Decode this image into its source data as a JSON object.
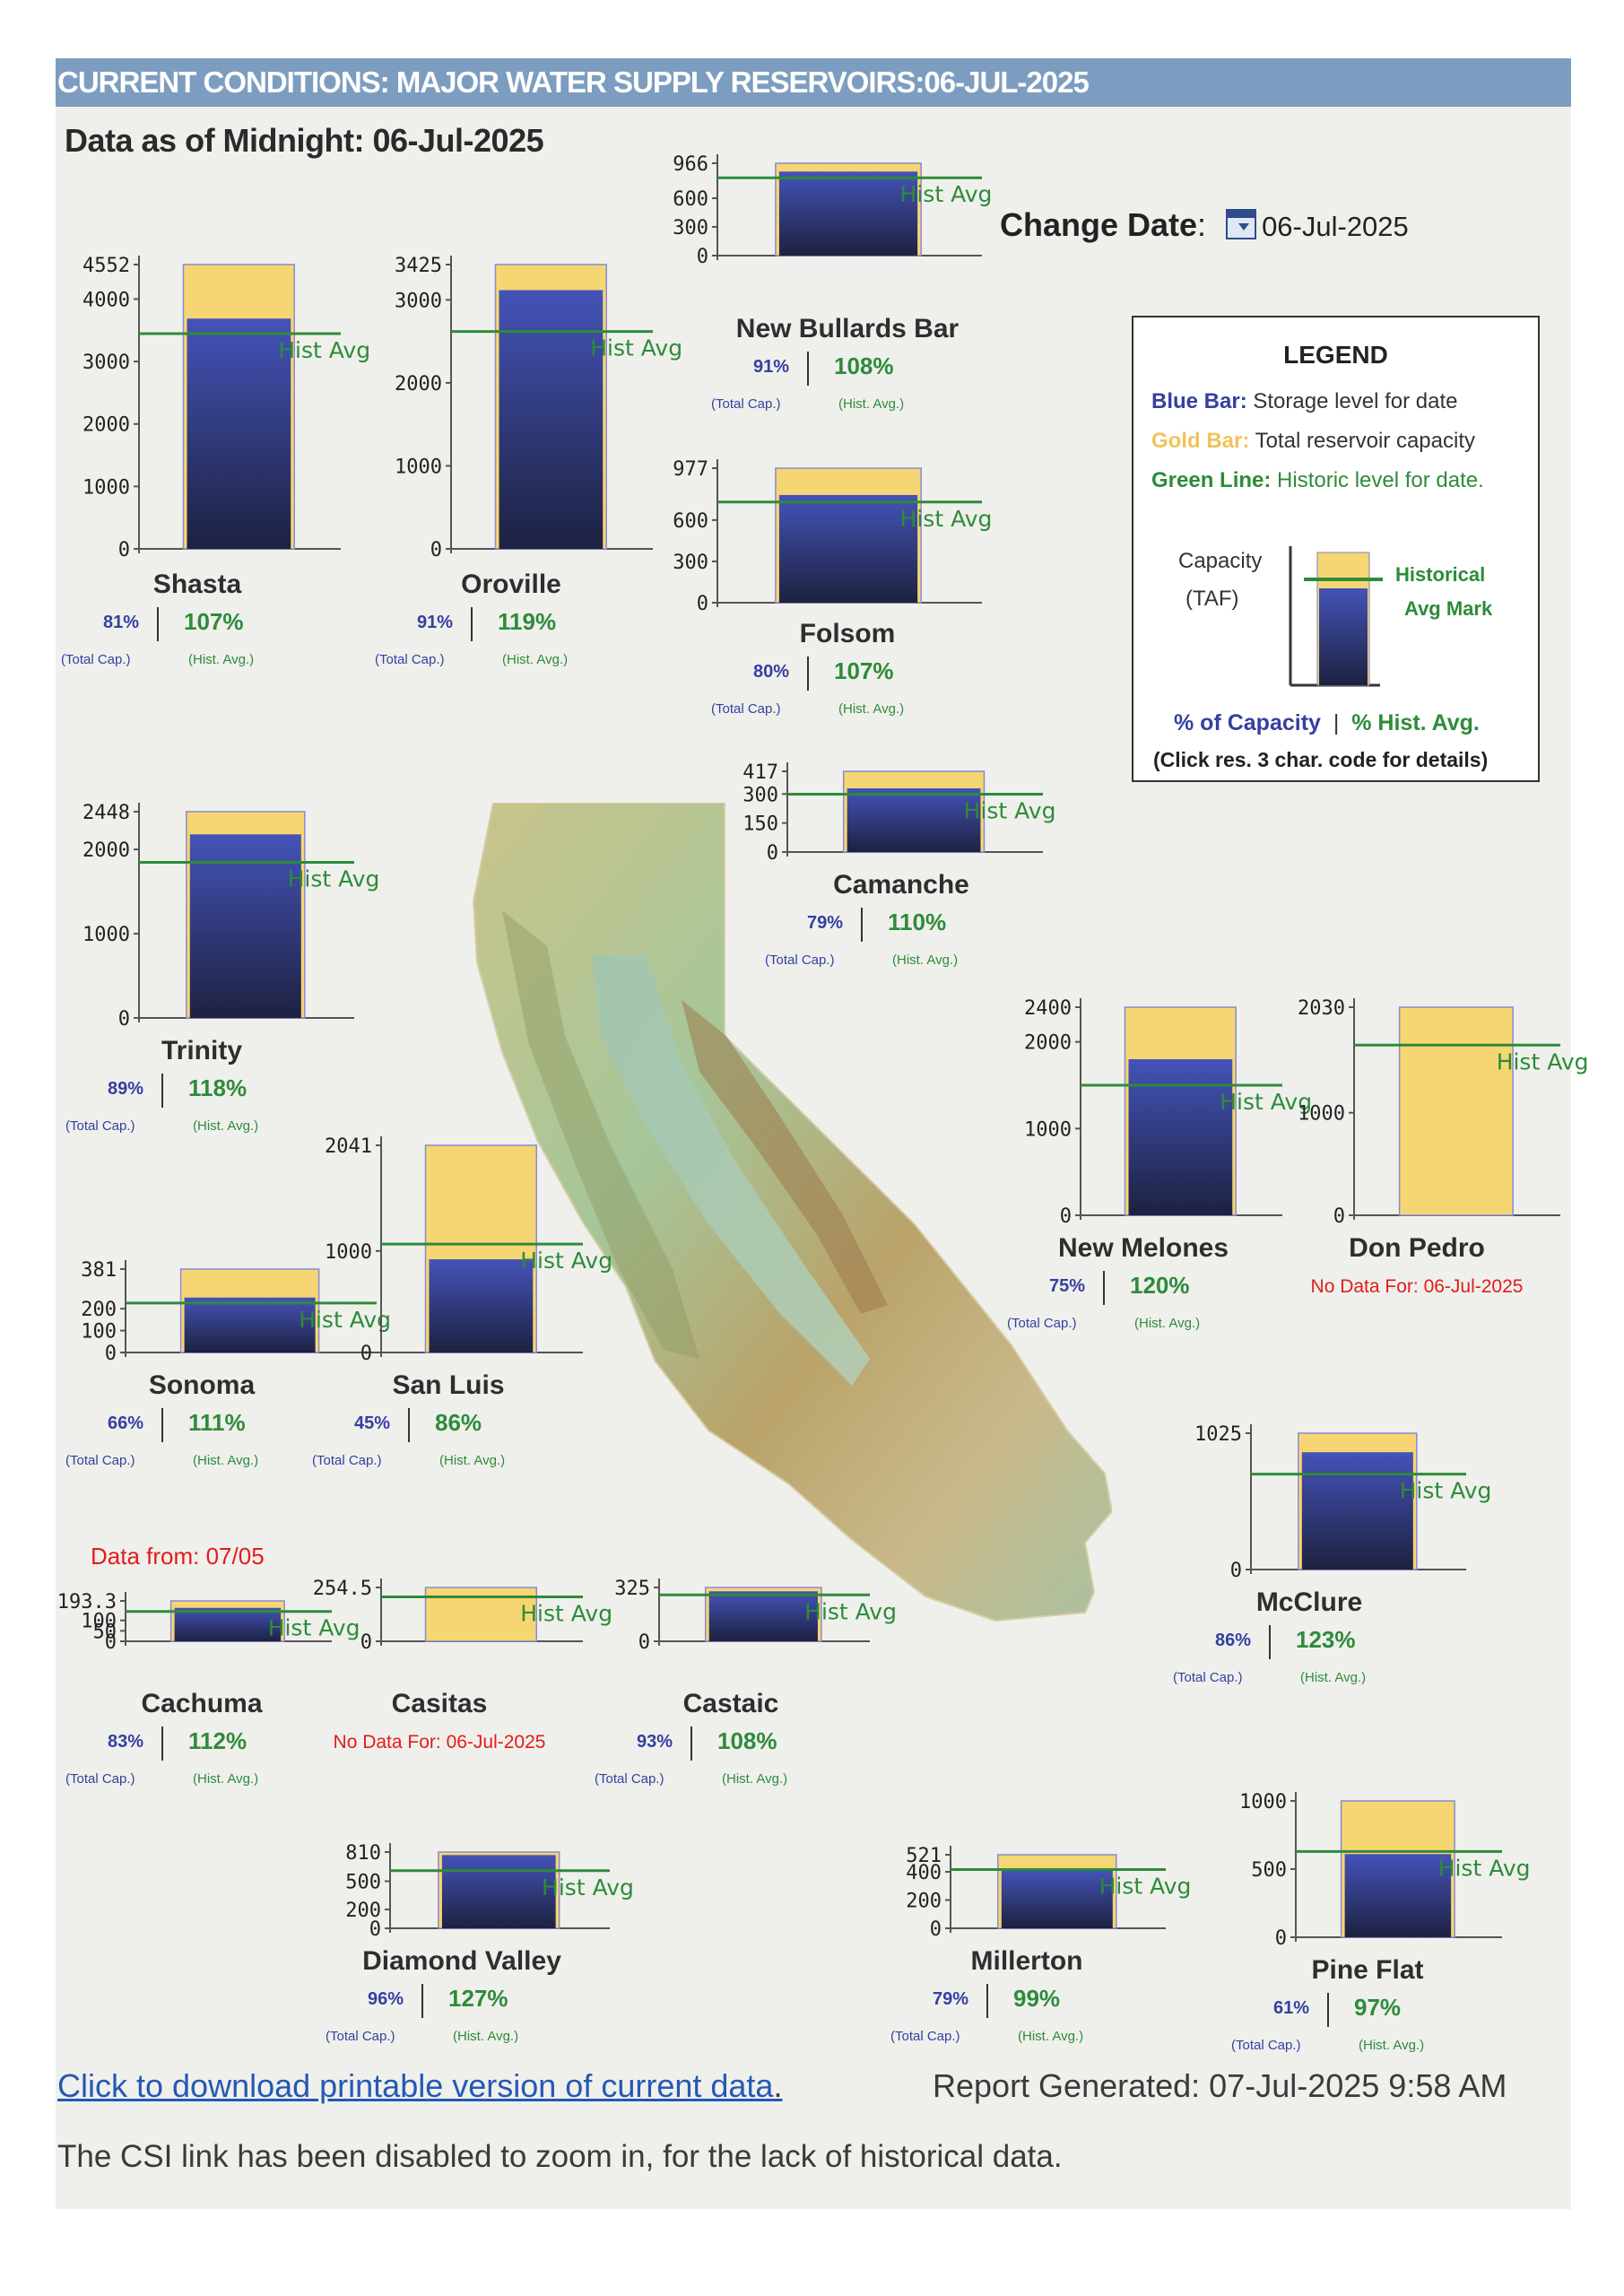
{
  "header": {
    "title": "CURRENT CONDITIONS: MAJOR WATER SUPPLY RESERVOIRS:06-JUL-2025",
    "as_of": "Data as of Midnight: 06-Jul-2025"
  },
  "change_date": {
    "label": "Change Date",
    "colon": ":",
    "value": "06-Jul-2025"
  },
  "legend": {
    "title": "LEGEND",
    "blue_label": "Blue Bar:",
    "blue_text": "Storage level for date",
    "gold_label": "Gold Bar:",
    "gold_text": "Total reservoir capacity",
    "green_label": "Green Line:",
    "green_text": "Historic level for date.",
    "capacity_label": "Capacity",
    "capacity_unit": "(TAF)",
    "hist_mark_line1": "Historical",
    "hist_mark_line2": "Avg Mark",
    "pct_capacity": "% of Capacity",
    "sep": "|",
    "pct_hist": "% Hist. Avg.",
    "click_note": "(Click res. 3 char. code for details)"
  },
  "labels": {
    "hist_avg": "Hist Avg",
    "total_cap": "(Total Cap.)",
    "hist_avg_small": "(Hist. Avg.)"
  },
  "colors": {
    "storage_top": "#4453b8",
    "storage_bottom": "#1d2140",
    "capacity": "#f6d672",
    "hist_line": "#2e8b3a",
    "header": "#7c9dbf"
  },
  "chart_data": [
    {
      "type": "bar",
      "name": "Shasta",
      "capacity": 4552,
      "storage": 3687,
      "hist": 3446,
      "ticks": [
        0,
        1000,
        2000,
        3000,
        4000,
        4552
      ],
      "pct_cap": "81%",
      "pct_hist": "107%"
    },
    {
      "type": "bar",
      "name": "Oroville",
      "capacity": 3425,
      "storage": 3117,
      "hist": 2619,
      "ticks": [
        0,
        1000,
        2000,
        3000,
        3425
      ],
      "pct_cap": "91%",
      "pct_hist": "119%"
    },
    {
      "type": "bar",
      "name": "New Bullards Bar",
      "capacity": 966,
      "storage": 879,
      "hist": 814,
      "ticks": [
        0,
        300,
        600,
        966
      ],
      "pct_cap": "91%",
      "pct_hist": "108%"
    },
    {
      "type": "bar",
      "name": "Folsom",
      "capacity": 977,
      "storage": 782,
      "hist": 731,
      "ticks": [
        0,
        300,
        600,
        977
      ],
      "pct_cap": "80%",
      "pct_hist": "107%"
    },
    {
      "type": "bar",
      "name": "Trinity",
      "capacity": 2448,
      "storage": 2179,
      "hist": 1846,
      "ticks": [
        0,
        1000,
        2000,
        2448
      ],
      "pct_cap": "89%",
      "pct_hist": "118%"
    },
    {
      "type": "bar",
      "name": "Camanche",
      "capacity": 417,
      "storage": 329,
      "hist": 299,
      "ticks": [
        0,
        150,
        300,
        417
      ],
      "pct_cap": "79%",
      "pct_hist": "110%"
    },
    {
      "type": "bar",
      "name": "New Melones",
      "capacity": 2400,
      "storage": 1800,
      "hist": 1500,
      "ticks": [
        0,
        1000,
        2000,
        2400
      ],
      "pct_cap": "75%",
      "pct_hist": "120%"
    },
    {
      "type": "bar",
      "name": "Don Pedro",
      "capacity": 2030,
      "storage": null,
      "hist": 1660,
      "ticks": [
        0,
        1000,
        2030
      ],
      "no_data": "No Data For: 06-Jul-2025"
    },
    {
      "type": "bar",
      "name": "Sonoma",
      "capacity": 381,
      "storage": 251,
      "hist": 226,
      "ticks": [
        0,
        100,
        200,
        381
      ],
      "pct_cap": "66%",
      "pct_hist": "111%"
    },
    {
      "type": "bar",
      "name": "San Luis",
      "capacity": 2041,
      "storage": 918,
      "hist": 1068,
      "ticks": [
        0,
        1000,
        2041
      ],
      "pct_cap": "45%",
      "pct_hist": "86%"
    },
    {
      "type": "bar",
      "name": "McClure",
      "capacity": 1025,
      "storage": 882,
      "hist": 717,
      "ticks": [
        0,
        1025
      ],
      "pct_cap": "86%",
      "pct_hist": "123%"
    },
    {
      "type": "bar",
      "name": "Cachuma",
      "capacity": 193.3,
      "storage": 160,
      "hist": 143,
      "ticks": [
        0,
        50,
        100,
        193.3
      ],
      "pct_cap": "83%",
      "pct_hist": "112%",
      "data_from": "Data from: 07/05"
    },
    {
      "type": "bar",
      "name": "Casitas",
      "capacity": 254.5,
      "storage": null,
      "hist": 210,
      "ticks": [
        0,
        254.5
      ],
      "no_data": "No Data For: 06-Jul-2025"
    },
    {
      "type": "bar",
      "name": "Castaic",
      "capacity": 325,
      "storage": 302,
      "hist": 280,
      "ticks": [
        0,
        325
      ],
      "pct_cap": "93%",
      "pct_hist": "108%"
    },
    {
      "type": "bar",
      "name": "Diamond Valley",
      "capacity": 810,
      "storage": 778,
      "hist": 612,
      "ticks": [
        0,
        200,
        500,
        810
      ],
      "pct_cap": "96%",
      "pct_hist": "127%"
    },
    {
      "type": "bar",
      "name": "Millerton",
      "capacity": 521,
      "storage": 412,
      "hist": 416,
      "ticks": [
        0,
        200,
        400,
        521
      ],
      "pct_cap": "79%",
      "pct_hist": "99%"
    },
    {
      "type": "bar",
      "name": "Pine Flat",
      "capacity": 1000,
      "storage": 610,
      "hist": 629,
      "ticks": [
        0,
        500,
        1000
      ],
      "pct_cap": "61%",
      "pct_hist": "97%"
    }
  ],
  "footer": {
    "download_link": "Click to download printable version of current data",
    "download_period": ".",
    "generated": "Report Generated: 07-Jul-2025 9:58 AM",
    "csi_note": "The CSI link has been disabled to zoom in, for the lack of historical data."
  }
}
